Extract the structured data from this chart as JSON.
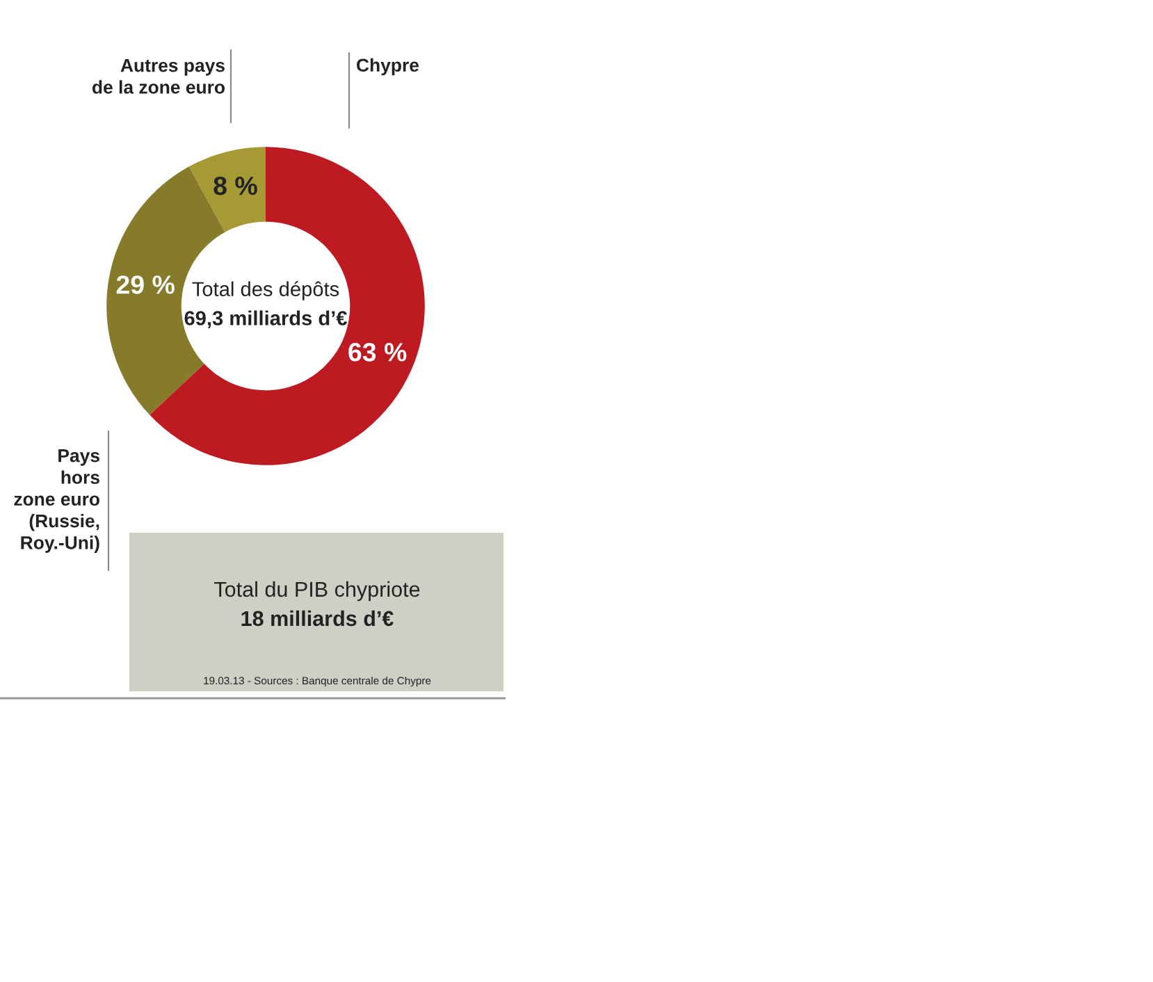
{
  "chart_data": {
    "type": "donut",
    "categories": [
      "Chypre",
      "Pays\nhors\nzone euro\n(Russie,\nRoy.-Uni)",
      "Autres pays\nde la zone euro"
    ],
    "values": [
      63,
      29,
      8
    ],
    "colors": [
      "#be1a22",
      "#857b2b",
      "#a69a35"
    ],
    "value_labels": [
      "63 %",
      "29 %",
      "8 %"
    ],
    "annotations": [
      "Total des dépôts",
      "69,3 milliards d’€",
      "Total du PIB chypriote",
      "18 milliards d’€",
      "19.03.13 - Sources : Banque centrale de Chypre"
    ],
    "legend": false
  }
}
